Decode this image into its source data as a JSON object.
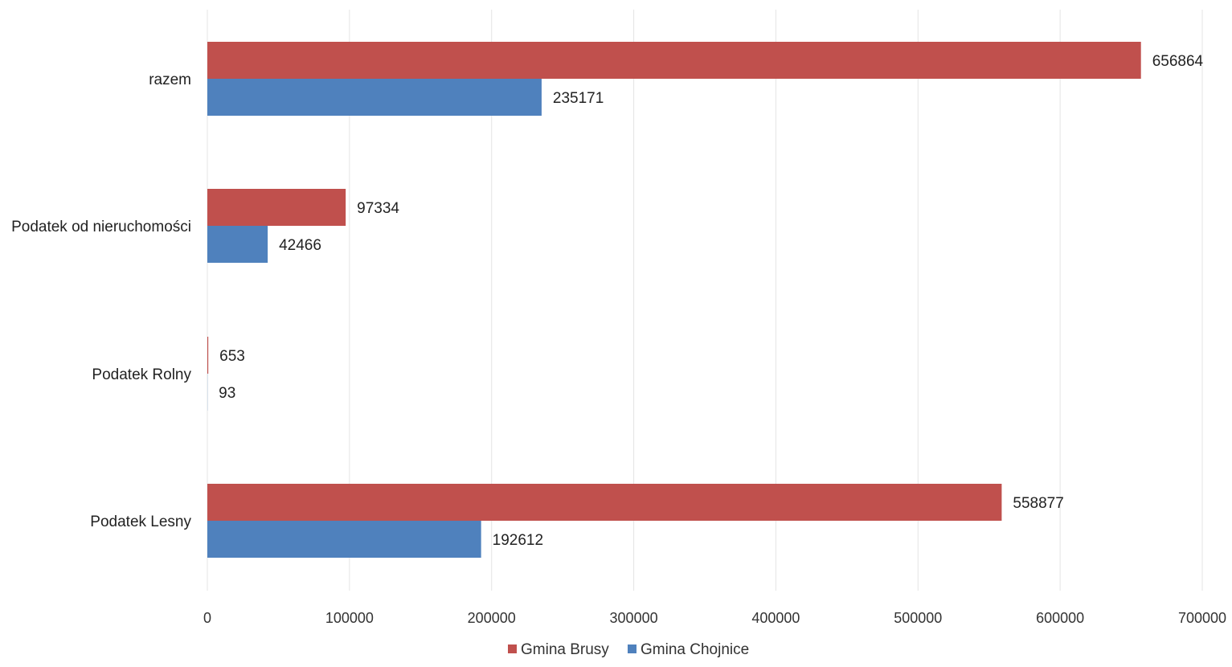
{
  "chart_data": {
    "type": "bar",
    "orientation": "horizontal",
    "title": "",
    "xlabel": "",
    "ylabel": "",
    "categories": [
      "razem",
      "Podatek od nieruchomości",
      "Podatek Rolny",
      "Podatek Lesny"
    ],
    "series": [
      {
        "name": "Gmina Brusy",
        "color": "#c0504d",
        "values": [
          656864,
          97334,
          653,
          558877
        ],
        "labels": [
          "656864",
          "97334",
          "653",
          "558877"
        ]
      },
      {
        "name": "Gmina Chojnice",
        "color": "#4f81bd",
        "values": [
          235171,
          42466,
          93,
          192612
        ],
        "labels": [
          "235171",
          "42466",
          "93",
          "192612"
        ]
      }
    ],
    "xlim": [
      0,
      700000
    ],
    "xticks": [
      "0",
      "100000",
      "200000",
      "300000",
      "400000",
      "500000",
      "600000",
      "700000"
    ],
    "grid": true,
    "legend_position": "bottom"
  }
}
